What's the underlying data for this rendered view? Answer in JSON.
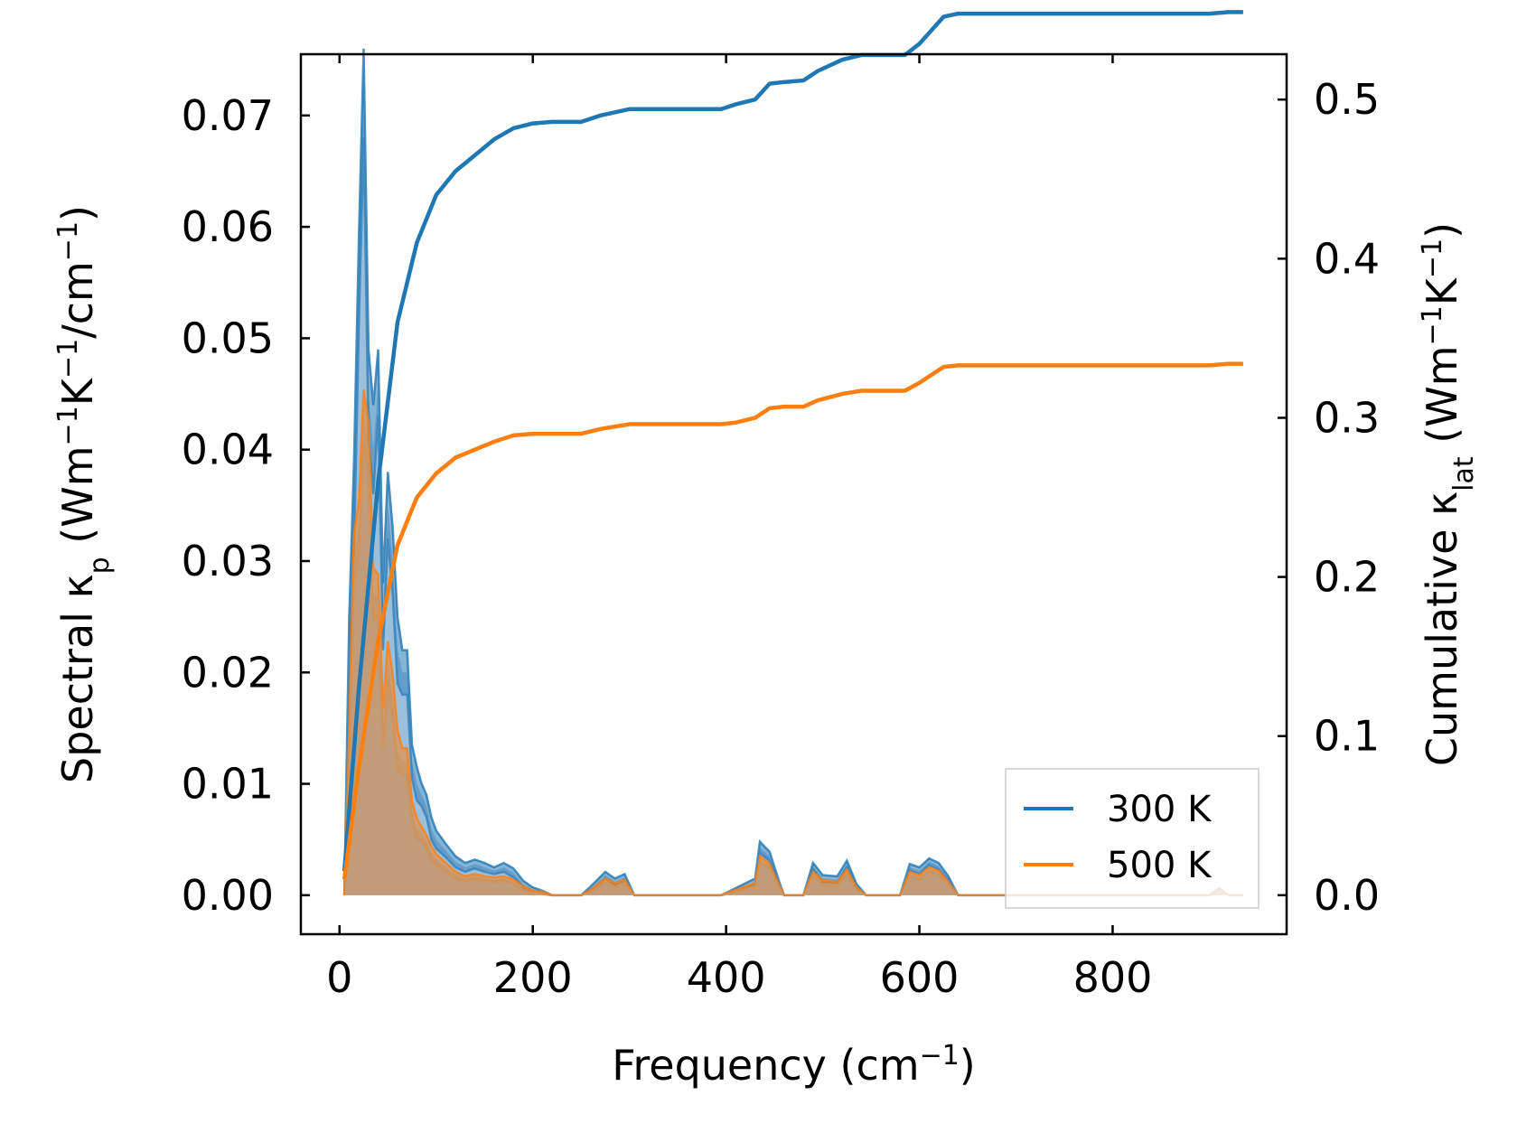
{
  "chart_data": {
    "type": "line",
    "title": "",
    "xlabel": {
      "main": "Frequency (cm",
      "sup": "−1",
      "tail": ")"
    },
    "ylabel_left": {
      "parts": [
        {
          "t": "Spectral κ"
        },
        {
          "t": "p",
          "sub": true
        },
        {
          "t": " (Wm"
        },
        {
          "t": "−1",
          "sup": true
        },
        {
          "t": "K"
        },
        {
          "t": "−1",
          "sup": true
        },
        {
          "t": "/cm"
        },
        {
          "t": "−1",
          "sup": true
        },
        {
          "t": ")"
        }
      ]
    },
    "ylabel_right": {
      "parts": [
        {
          "t": "Cumulative κ"
        },
        {
          "t": "lat",
          "sub": true
        },
        {
          "t": " (Wm"
        },
        {
          "t": "−1",
          "sup": true
        },
        {
          "t": "K"
        },
        {
          "t": "−1",
          "sup": true
        },
        {
          "t": ")"
        }
      ]
    },
    "xlim": [
      -40,
      980
    ],
    "ylim_left": [
      -0.0035,
      0.0755
    ],
    "ylim_right": [
      -0.0245,
      0.5285
    ],
    "x_ticks": [
      0,
      200,
      400,
      600,
      800
    ],
    "x_tick_labels": [
      "0",
      "200",
      "400",
      "600",
      "800"
    ],
    "y_left_ticks": [
      0,
      0.01,
      0.02,
      0.03,
      0.04,
      0.05,
      0.06,
      0.07
    ],
    "y_left_tick_labels": [
      "0.00",
      "0.01",
      "0.02",
      "0.03",
      "0.04",
      "0.05",
      "0.06",
      "0.07"
    ],
    "y_right_ticks": [
      0,
      0.1,
      0.2,
      0.3,
      0.4,
      0.5
    ],
    "y_right_tick_labels": [
      "0.0",
      "0.1",
      "0.2",
      "0.3",
      "0.4",
      "0.5"
    ],
    "legend": {
      "position": "bottom-right",
      "entries": [
        "300 K",
        "500 K"
      ]
    },
    "series": [
      {
        "name": "300 K",
        "color": "#1f77b4",
        "spectral": {
          "x": [
            5,
            10,
            15,
            20,
            25,
            30,
            35,
            40,
            45,
            50,
            55,
            60,
            65,
            70,
            75,
            80,
            85,
            90,
            95,
            100,
            110,
            120,
            130,
            140,
            150,
            160,
            170,
            180,
            190,
            200,
            210,
            220,
            250,
            260,
            275,
            285,
            295,
            305,
            395,
            430,
            435,
            445,
            455,
            460,
            480,
            490,
            500,
            515,
            525,
            535,
            545,
            580,
            590,
            600,
            610,
            620,
            630,
            640,
            900,
            910,
            920,
            935
          ],
          "y": [
            0.0,
            0.022,
            0.035,
            0.055,
            0.072,
            0.045,
            0.04,
            0.046,
            0.025,
            0.035,
            0.03,
            0.022,
            0.02,
            0.02,
            0.012,
            0.01,
            0.009,
            0.008,
            0.006,
            0.005,
            0.004,
            0.003,
            0.0025,
            0.0028,
            0.0025,
            0.0022,
            0.0025,
            0.002,
            0.001,
            0.0005,
            0.0003,
            0.0,
            0.0,
            0.0006,
            0.0018,
            0.0012,
            0.0016,
            0.0,
            0.0,
            0.0012,
            0.0043,
            0.0035,
            0.001,
            0.0,
            0.0,
            0.0026,
            0.0015,
            0.0014,
            0.0028,
            0.0008,
            0.0,
            0.0,
            0.0025,
            0.0022,
            0.003,
            0.0026,
            0.0015,
            0.0,
            0.0,
            0.0005,
            0.0,
            0.0
          ],
          "band": [
            0.0,
            0.003,
            0.004,
            0.004,
            0.004,
            0.004,
            0.004,
            0.003,
            0.003,
            0.003,
            0.003,
            0.003,
            0.002,
            0.002,
            0.0015,
            0.0015,
            0.001,
            0.001,
            0.001,
            0.0008,
            0.0006,
            0.0005,
            0.0004,
            0.0004,
            0.0004,
            0.0003,
            0.0004,
            0.0004,
            0.0003,
            0.0002,
            0.0001,
            0.0,
            0.0,
            0.0002,
            0.0003,
            0.0003,
            0.0003,
            0.0,
            0.0,
            0.0003,
            0.0005,
            0.0004,
            0.0002,
            0.0,
            0.0,
            0.0003,
            0.0003,
            0.0003,
            0.0003,
            0.0002,
            0.0,
            0.0,
            0.0003,
            0.0003,
            0.0003,
            0.0003,
            0.0002,
            0.0,
            0.0,
            0.0001,
            0.0,
            0.0
          ]
        },
        "cumulative": {
          "x": [
            5,
            20,
            40,
            60,
            80,
            100,
            120,
            140,
            160,
            180,
            200,
            220,
            250,
            270,
            300,
            395,
            410,
            430,
            445,
            460,
            480,
            495,
            520,
            540,
            585,
            600,
            625,
            640,
            900,
            920,
            935
          ],
          "y": [
            0.015,
            0.13,
            0.26,
            0.36,
            0.41,
            0.44,
            0.455,
            0.465,
            0.475,
            0.482,
            0.485,
            0.486,
            0.486,
            0.49,
            0.494,
            0.494,
            0.497,
            0.5,
            0.51,
            0.511,
            0.512,
            0.518,
            0.525,
            0.528,
            0.528,
            0.535,
            0.552,
            0.554,
            0.554,
            0.555,
            0.555
          ]
        }
      },
      {
        "name": "500 K",
        "color": "#ff7f0e",
        "spectral": {
          "x": [
            5,
            10,
            15,
            20,
            25,
            30,
            35,
            40,
            45,
            50,
            55,
            60,
            65,
            70,
            75,
            80,
            85,
            90,
            95,
            100,
            110,
            120,
            130,
            140,
            150,
            160,
            170,
            180,
            190,
            200,
            210,
            220,
            250,
            260,
            275,
            285,
            295,
            305,
            395,
            430,
            435,
            445,
            455,
            460,
            480,
            490,
            500,
            515,
            525,
            535,
            545,
            580,
            590,
            600,
            610,
            620,
            630,
            640,
            900,
            910,
            920,
            935
          ],
          "y": [
            0.0,
            0.013,
            0.03,
            0.033,
            0.043,
            0.04,
            0.027,
            0.027,
            0.015,
            0.021,
            0.018,
            0.013,
            0.012,
            0.012,
            0.0075,
            0.006,
            0.0055,
            0.0048,
            0.0038,
            0.0032,
            0.0025,
            0.0018,
            0.0015,
            0.0017,
            0.0015,
            0.0014,
            0.0015,
            0.0012,
            0.0006,
            0.0003,
            0.0002,
            0.0,
            0.0,
            0.0004,
            0.0013,
            0.0009,
            0.0012,
            0.0,
            0.0,
            0.0009,
            0.0032,
            0.0026,
            0.0008,
            0.0,
            0.0,
            0.0019,
            0.0011,
            0.001,
            0.0021,
            0.0006,
            0.0,
            0.0,
            0.0019,
            0.0016,
            0.0023,
            0.002,
            0.0011,
            0.0,
            0.0,
            0.0004,
            0.0,
            0.0
          ],
          "band": [
            0.0,
            0.0018,
            0.0024,
            0.0024,
            0.0024,
            0.0024,
            0.0024,
            0.0018,
            0.0018,
            0.0018,
            0.0018,
            0.0018,
            0.0012,
            0.0012,
            0.0009,
            0.0009,
            0.0006,
            0.0006,
            0.0006,
            0.0005,
            0.0004,
            0.0003,
            0.0002,
            0.0002,
            0.0002,
            0.0002,
            0.0002,
            0.0002,
            0.0002,
            0.0001,
            0.0001,
            0.0,
            0.0,
            0.0001,
            0.0002,
            0.0002,
            0.0002,
            0.0,
            0.0,
            0.0002,
            0.0003,
            0.0002,
            0.0001,
            0.0,
            0.0,
            0.0002,
            0.0002,
            0.0002,
            0.0002,
            0.0001,
            0.0,
            0.0,
            0.0002,
            0.0002,
            0.0002,
            0.0002,
            0.0001,
            0.0,
            0.0,
            0.0001,
            0.0,
            0.0
          ]
        },
        "cumulative": {
          "x": [
            5,
            20,
            40,
            60,
            80,
            100,
            120,
            140,
            160,
            180,
            200,
            220,
            250,
            270,
            300,
            395,
            410,
            430,
            445,
            460,
            480,
            495,
            520,
            540,
            585,
            600,
            625,
            640,
            900,
            920,
            935
          ],
          "y": [
            0.01,
            0.08,
            0.16,
            0.22,
            0.25,
            0.265,
            0.275,
            0.28,
            0.285,
            0.289,
            0.29,
            0.29,
            0.29,
            0.293,
            0.296,
            0.296,
            0.297,
            0.3,
            0.306,
            0.307,
            0.307,
            0.311,
            0.315,
            0.317,
            0.317,
            0.322,
            0.332,
            0.333,
            0.333,
            0.334,
            0.334
          ]
        }
      }
    ]
  }
}
